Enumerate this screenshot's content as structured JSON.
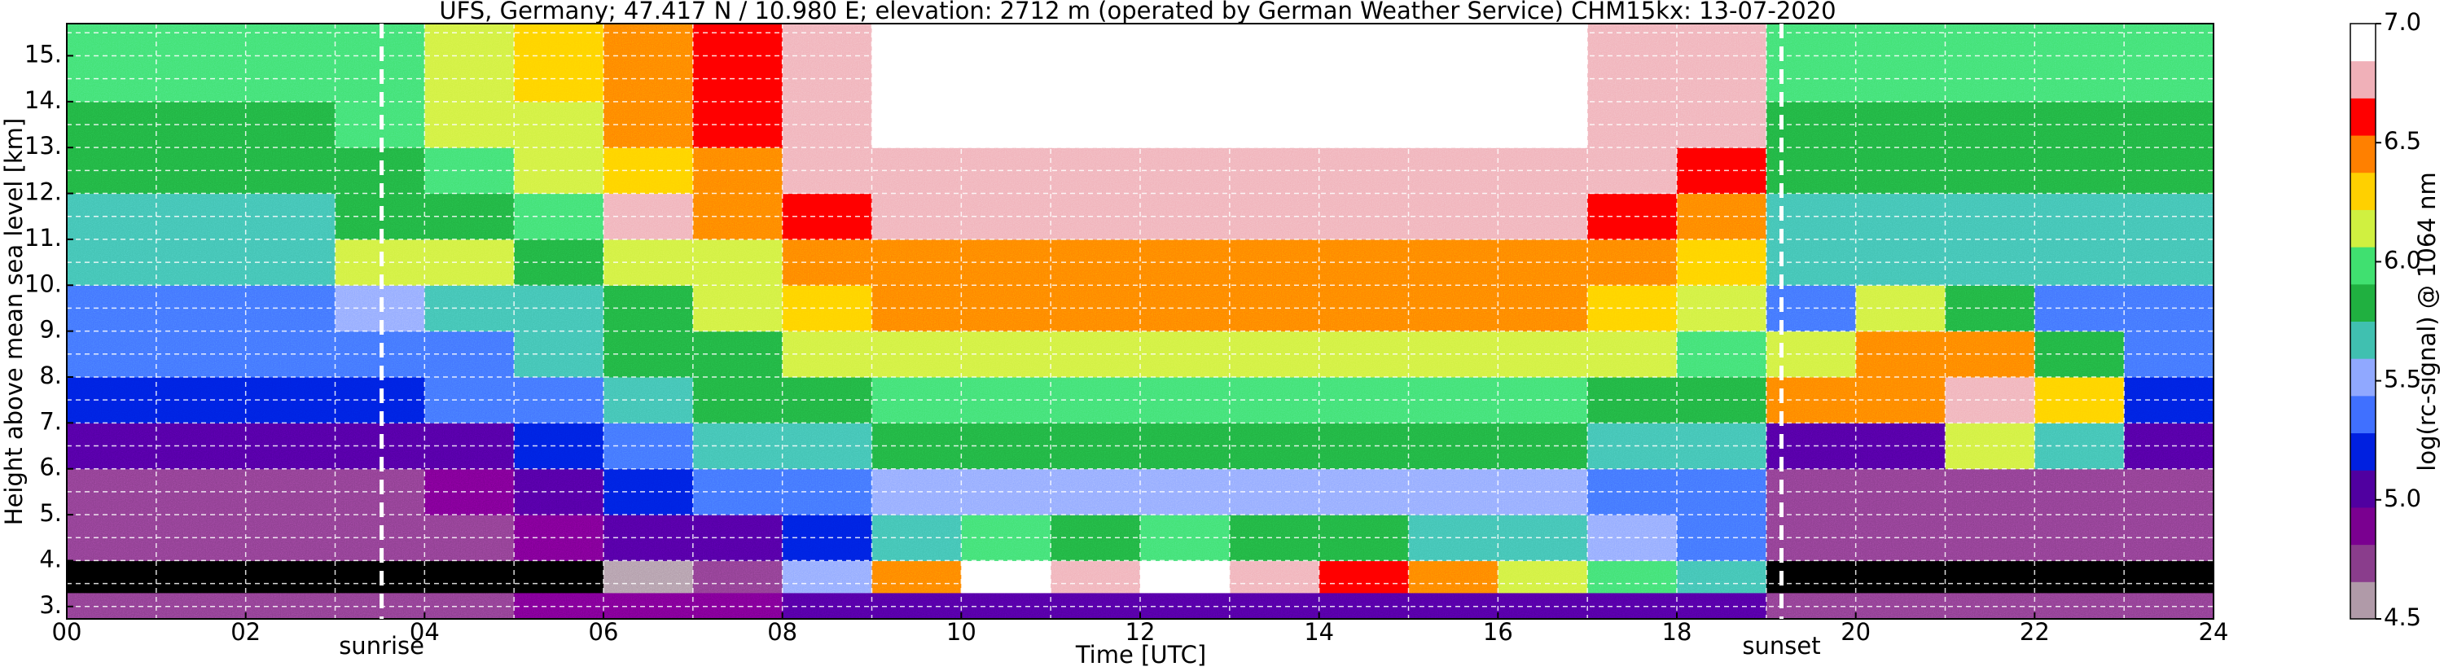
{
  "chart_data": {
    "type": "heatmap",
    "title": "UFS, Germany; 47.417 N / 10.980 E; elevation: 2712 m  (operated by German Weather Service)    CHM15kx: 13-07-2020",
    "x_label": "Time [UTC]",
    "y_label": "Height above mean sea level [km]",
    "colorbar_label": "log(rc-signal) @ 1064 nm",
    "xlim": [
      0,
      24
    ],
    "ylim": [
      2.73,
      15.7
    ],
    "xticks": [
      {
        "value": 0,
        "label": "00"
      },
      {
        "value": 2,
        "label": "02"
      },
      {
        "value": 4,
        "label": "04"
      },
      {
        "value": 6,
        "label": "06"
      },
      {
        "value": 8,
        "label": "08"
      },
      {
        "value": 10,
        "label": "10"
      },
      {
        "value": 12,
        "label": "12"
      },
      {
        "value": 14,
        "label": "14"
      },
      {
        "value": 16,
        "label": "16"
      },
      {
        "value": 18,
        "label": "18"
      },
      {
        "value": 20,
        "label": "20"
      },
      {
        "value": 22,
        "label": "22"
      },
      {
        "value": 24,
        "label": "24"
      }
    ],
    "xminor": [
      1,
      3,
      5,
      7,
      9,
      11,
      13,
      15,
      17,
      19,
      21,
      23
    ],
    "yticks": [
      {
        "value": 3,
        "label": "3."
      },
      {
        "value": 4,
        "label": "4."
      },
      {
        "value": 5,
        "label": "5."
      },
      {
        "value": 6,
        "label": "6."
      },
      {
        "value": 7,
        "label": "7."
      },
      {
        "value": 8,
        "label": "8."
      },
      {
        "value": 9,
        "label": "9."
      },
      {
        "value": 10,
        "label": "10."
      },
      {
        "value": 11,
        "label": "11."
      },
      {
        "value": 12,
        "label": "12."
      },
      {
        "value": 13,
        "label": "13."
      },
      {
        "value": 14,
        "label": "14."
      },
      {
        "value": 15,
        "label": "15."
      }
    ],
    "yminor": [
      3.5,
      4.5,
      5.5,
      6.5,
      7.5,
      8.5,
      9.5,
      10.5,
      11.5,
      12.5,
      13.5,
      14.5,
      15.5
    ],
    "grid": true,
    "zlim": [
      4.5,
      7.0
    ],
    "zticks": [
      4.5,
      {
        "value": 5,
        "label": "5.0"
      },
      5.5,
      {
        "value": 6,
        "label": "6.0"
      },
      6.5,
      {
        "value": 7,
        "label": "7.0"
      }
    ],
    "colormap": [
      "#b09aa8",
      "#8a3d8c",
      "#7a0090",
      "#5000a0",
      "#0020e0",
      "#4070ff",
      "#90a8ff",
      "#40c0b0",
      "#20b040",
      "#40e070",
      "#d0f040",
      "#ffd000",
      "#ff8000",
      "#ff0000",
      "#f0b0b8",
      "#ffffff"
    ],
    "under_color": "#000000",
    "annotations": [
      {
        "text": "sunrise",
        "x": 3.52
      },
      {
        "text": "sunset",
        "x": 19.17
      }
    ],
    "xbins": [
      0,
      1,
      2,
      3,
      4,
      5,
      6,
      7,
      8,
      9,
      10,
      11,
      12,
      13,
      14,
      15,
      16,
      17,
      18,
      19,
      20,
      21,
      22,
      23,
      24
    ],
    "ybins": [
      2.73,
      3.3,
      4,
      5,
      6,
      7,
      8,
      9,
      10,
      11,
      12,
      13,
      14,
      15,
      15.7
    ],
    "z": [
      [
        4.8,
        4.8,
        4.8,
        4.8,
        4.8,
        4.9,
        4.9,
        4.9,
        5.0,
        5.0,
        5.0,
        5.0,
        5.0,
        5.0,
        5.0,
        5.0,
        5.0,
        5.0,
        5.0,
        4.8,
        4.8,
        4.8,
        4.8,
        4.8
      ],
      [
        4.3,
        4.3,
        4.3,
        4.3,
        4.3,
        4.4,
        4.6,
        4.7,
        5.5,
        6.4,
        6.9,
        6.8,
        6.9,
        6.7,
        6.6,
        6.4,
        6.2,
        6.0,
        5.7,
        4.3,
        4.3,
        4.3,
        4.3,
        4.3
      ],
      [
        4.7,
        4.7,
        4.7,
        4.7,
        4.8,
        4.9,
        5.0,
        5.1,
        5.2,
        5.6,
        6.0,
        5.9,
        6.0,
        5.9,
        5.8,
        5.7,
        5.6,
        5.5,
        5.4,
        4.7,
        4.7,
        4.7,
        4.7,
        4.7
      ],
      [
        4.8,
        4.8,
        4.8,
        4.8,
        4.9,
        5.0,
        5.2,
        5.3,
        5.4,
        5.5,
        5.5,
        5.5,
        5.5,
        5.5,
        5.5,
        5.5,
        5.5,
        5.4,
        5.4,
        4.8,
        4.8,
        4.8,
        4.8,
        4.8
      ],
      [
        5.0,
        5.0,
        5.0,
        5.0,
        5.1,
        5.2,
        5.4,
        5.6,
        5.7,
        5.8,
        5.8,
        5.8,
        5.8,
        5.8,
        5.8,
        5.8,
        5.8,
        5.7,
        5.6,
        5.0,
        5.0,
        6.2,
        5.6,
        5.0
      ],
      [
        5.2,
        5.2,
        5.2,
        5.2,
        5.3,
        5.4,
        5.6,
        5.8,
        5.9,
        6.0,
        6.0,
        6.0,
        6.0,
        6.0,
        6.0,
        6.0,
        6.0,
        5.9,
        5.8,
        6.4,
        6.5,
        6.7,
        6.3,
        5.2
      ],
      [
        5.3,
        5.3,
        5.3,
        5.3,
        5.4,
        5.6,
        5.8,
        5.9,
        6.1,
        6.2,
        6.2,
        6.2,
        6.2,
        6.2,
        6.2,
        6.2,
        6.2,
        6.1,
        6.0,
        6.2,
        6.5,
        6.4,
        5.8,
        5.3
      ],
      [
        5.4,
        5.4,
        5.4,
        5.5,
        5.6,
        5.7,
        5.9,
        6.1,
        6.3,
        6.4,
        6.4,
        6.4,
        6.4,
        6.4,
        6.4,
        6.4,
        6.4,
        6.3,
        6.2,
        5.4,
        6.1,
        5.8,
        5.4,
        5.4
      ],
      [
        5.6,
        5.6,
        5.6,
        6.1,
        6.2,
        5.9,
        6.1,
        6.2,
        6.4,
        6.5,
        6.5,
        6.5,
        6.5,
        6.5,
        6.5,
        6.5,
        6.5,
        6.4,
        6.3,
        5.6,
        5.6,
        5.6,
        5.6,
        5.6
      ],
      [
        5.7,
        5.7,
        5.7,
        5.8,
        5.9,
        6.0,
        6.8,
        6.4,
        6.6,
        6.7,
        6.7,
        6.7,
        6.7,
        6.7,
        6.7,
        6.7,
        6.7,
        6.6,
        6.5,
        5.7,
        5.7,
        5.7,
        5.7,
        5.7
      ],
      [
        5.8,
        5.8,
        5.8,
        5.9,
        6.0,
        6.1,
        6.3,
        6.5,
        6.7,
        6.8,
        6.8,
        6.8,
        6.8,
        6.8,
        6.8,
        6.8,
        6.8,
        6.7,
        6.6,
        5.8,
        5.8,
        5.8,
        5.8,
        5.8
      ],
      [
        5.9,
        5.9,
        5.9,
        6.0,
        6.1,
        6.2,
        6.4,
        6.6,
        6.8,
        6.9,
        6.9,
        6.9,
        6.9,
        6.9,
        6.9,
        6.9,
        6.9,
        6.8,
        6.7,
        5.9,
        5.9,
        5.9,
        5.9,
        5.9
      ],
      [
        6.0,
        6.0,
        6.0,
        6.0,
        6.1,
        6.3,
        6.5,
        6.6,
        6.8,
        6.9,
        6.9,
        6.9,
        6.9,
        6.9,
        6.9,
        6.9,
        6.9,
        6.8,
        6.7,
        6.0,
        6.0,
        6.0,
        6.0,
        6.0
      ],
      [
        6.0,
        6.0,
        6.0,
        6.0,
        6.1,
        6.3,
        6.5,
        6.6,
        6.8,
        6.9,
        6.9,
        6.9,
        6.9,
        6.9,
        6.9,
        6.9,
        6.9,
        6.8,
        6.7,
        6.0,
        6.0,
        6.0,
        6.0,
        6.0
      ]
    ]
  }
}
